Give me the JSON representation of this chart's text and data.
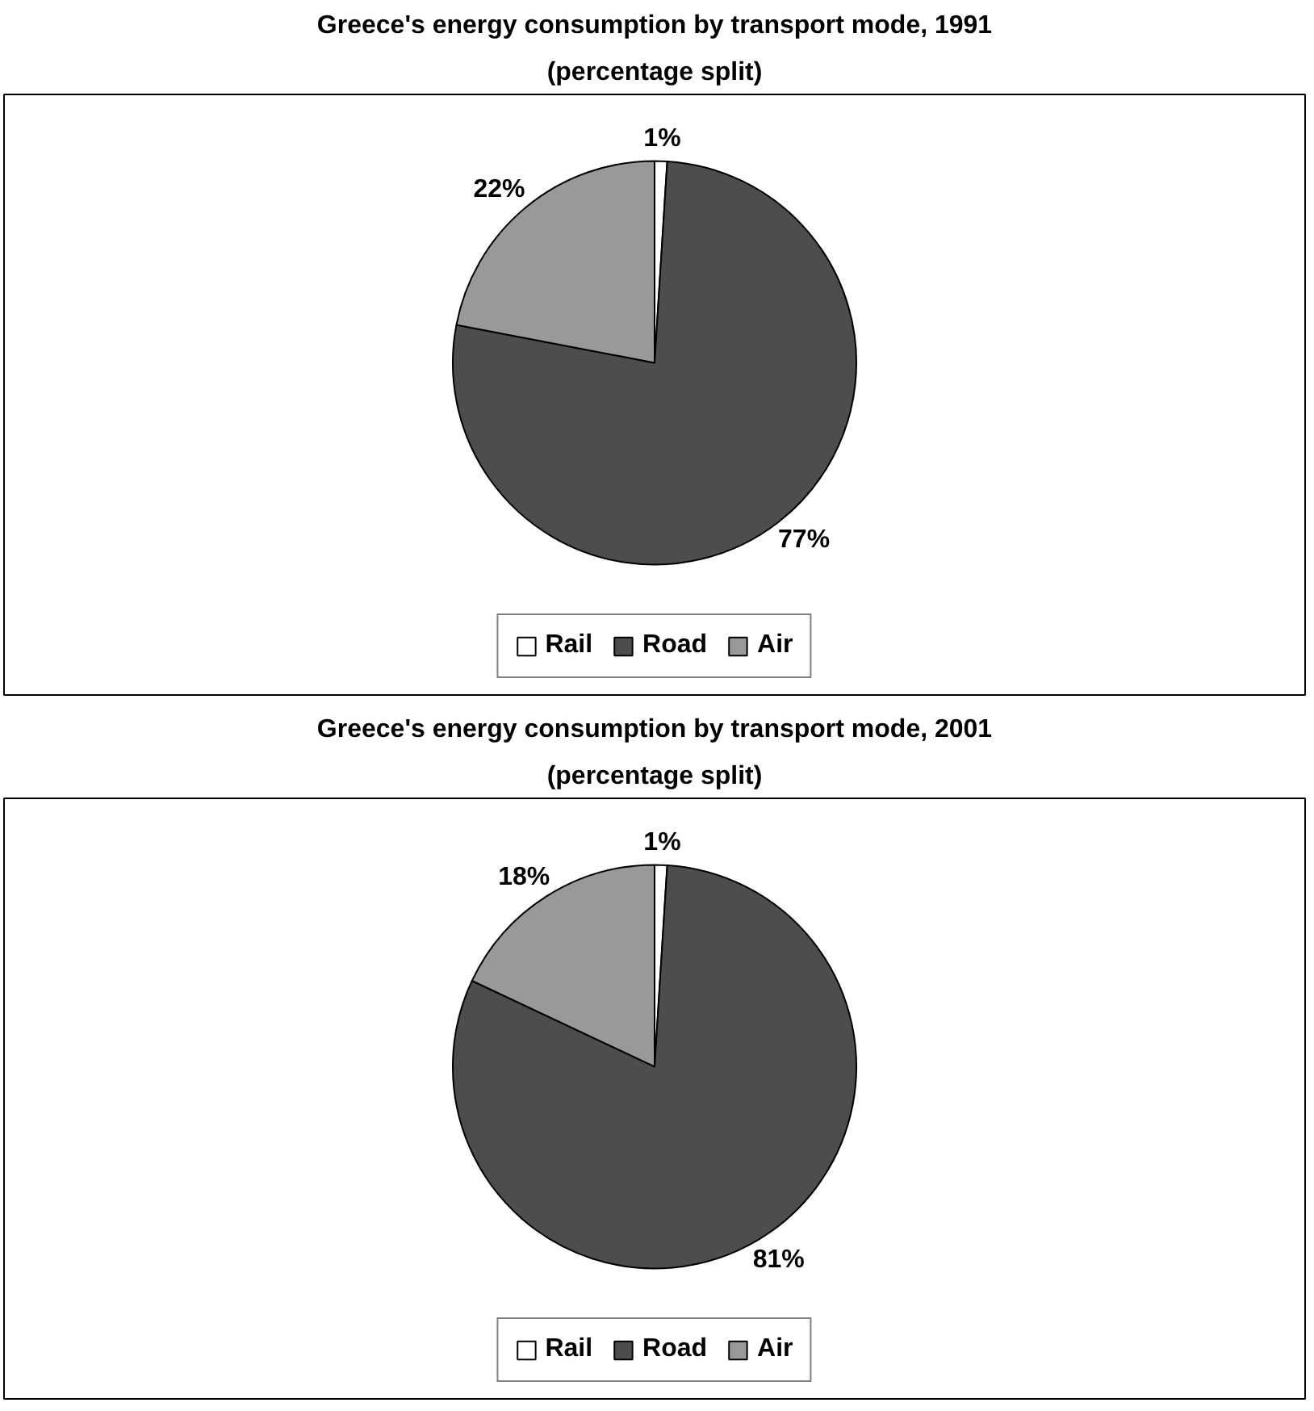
{
  "chart_data": [
    {
      "type": "pie",
      "title": "Greece's energy consumption by transport mode, 1991",
      "subtitle": "(percentage split)",
      "categories": [
        "Rail",
        "Road",
        "Air"
      ],
      "values": [
        1,
        77,
        22
      ],
      "colors": [
        "#ffffff",
        "#4d4d4d",
        "#999999"
      ],
      "value_labels": [
        "1%",
        "77%",
        "22%"
      ],
      "legend": "bottom"
    },
    {
      "type": "pie",
      "title": "Greece's energy consumption by transport mode, 2001",
      "subtitle": "(percentage split)",
      "categories": [
        "Rail",
        "Road",
        "Air"
      ],
      "values": [
        1,
        81,
        18
      ],
      "colors": [
        "#ffffff",
        "#4d4d4d",
        "#999999"
      ],
      "value_labels": [
        "1%",
        "81%",
        "18%"
      ],
      "legend": "bottom"
    }
  ]
}
